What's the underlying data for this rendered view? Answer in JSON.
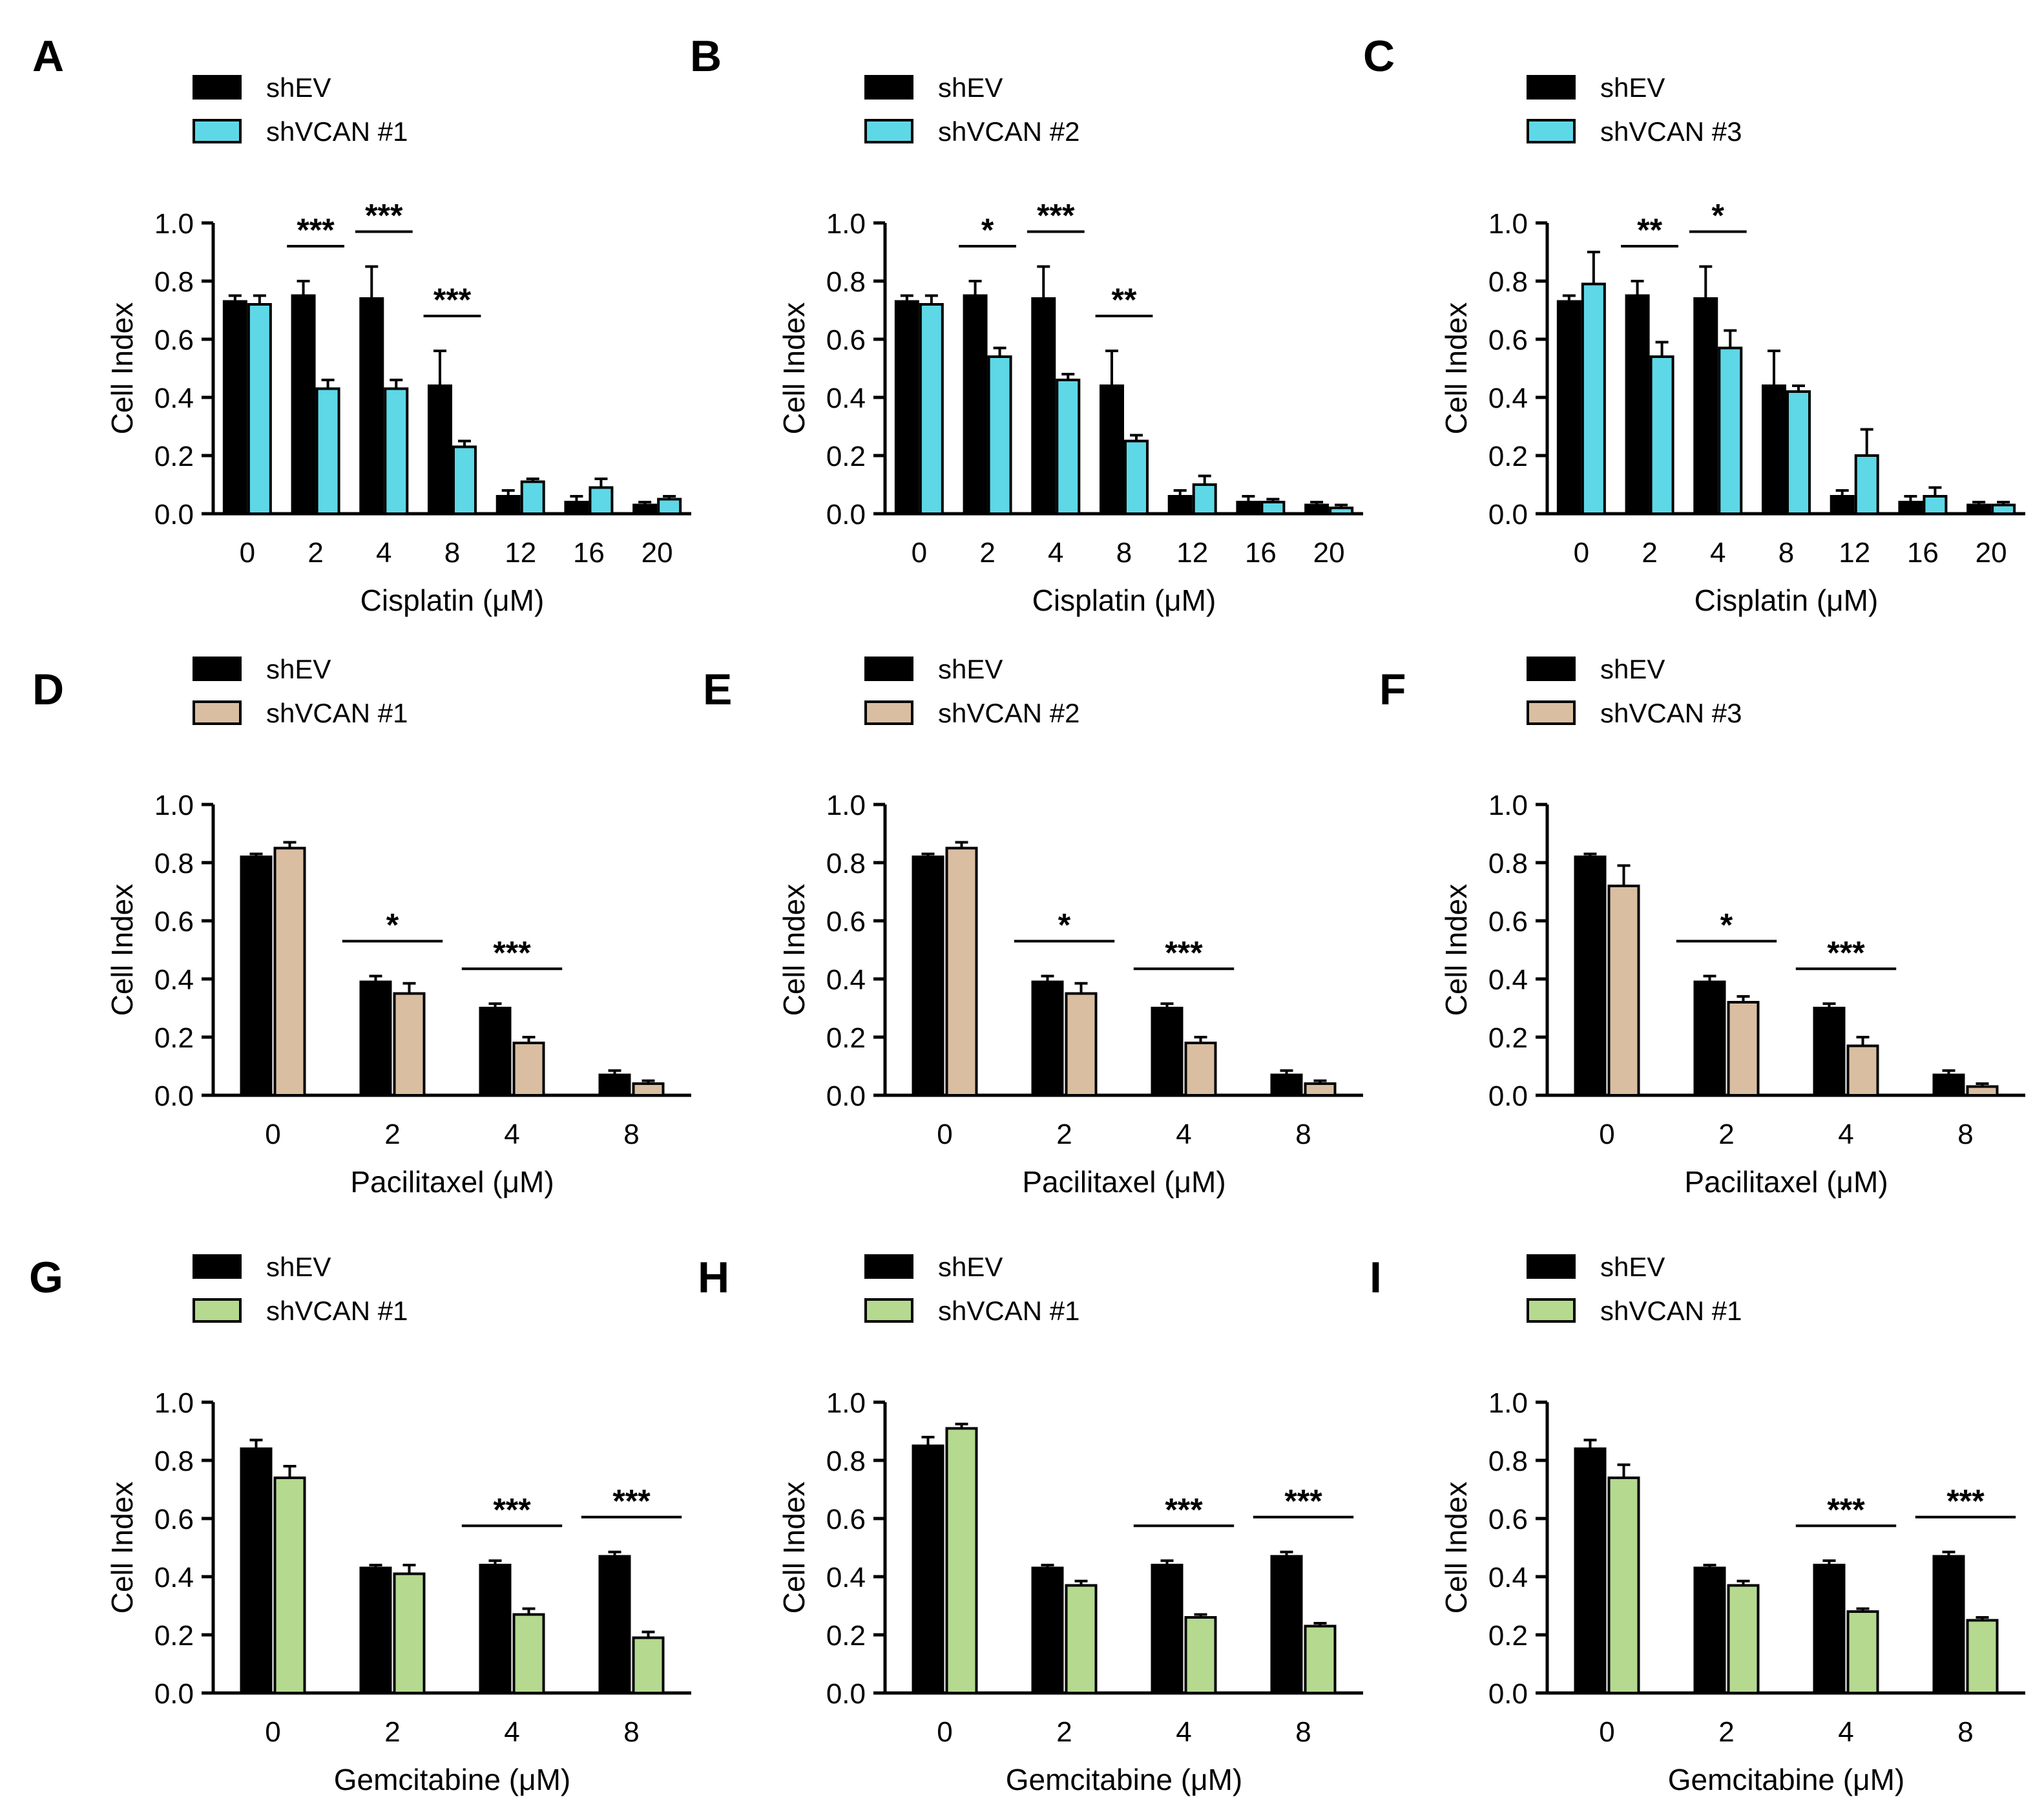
{
  "colors": {
    "shEV": "#000000",
    "cisplatin_knockdown": "#5ED8E6",
    "paclitaxel_knockdown": "#D9BEA1",
    "gemcitabine_knockdown": "#B4D98F"
  },
  "chart_data": [
    {
      "panel": "A",
      "type": "bar",
      "categories": [
        "0",
        "2",
        "4",
        "8",
        "12",
        "16",
        "20"
      ],
      "xlabel": "Cisplatin (μM)",
      "ylabel": "Cell Index",
      "ylim": [
        0,
        1.0
      ],
      "yticks": [
        "0.0",
        "0.2",
        "0.4",
        "0.6",
        "0.8",
        "1.0"
      ],
      "legend": "top-left",
      "series": [
        {
          "name": "shEV",
          "values": [
            0.73,
            0.75,
            0.74,
            0.44,
            0.06,
            0.04,
            0.03
          ],
          "errors": [
            0.02,
            0.05,
            0.11,
            0.12,
            0.02,
            0.02,
            0.01
          ]
        },
        {
          "name": "shVCAN #1",
          "values": [
            0.72,
            0.43,
            0.43,
            0.23,
            0.11,
            0.09,
            0.05
          ],
          "errors": [
            0.03,
            0.03,
            0.03,
            0.02,
            0.01,
            0.03,
            0.01
          ]
        }
      ],
      "significance": [
        {
          "category": "2",
          "label": "***"
        },
        {
          "category": "4",
          "label": "***"
        },
        {
          "category": "8",
          "label": "***"
        }
      ]
    },
    {
      "panel": "B",
      "type": "bar",
      "categories": [
        "0",
        "2",
        "4",
        "8",
        "12",
        "16",
        "20"
      ],
      "xlabel": "Cisplatin (μM)",
      "ylabel": "Cell Index",
      "ylim": [
        0,
        1.0
      ],
      "yticks": [
        "0.0",
        "0.2",
        "0.4",
        "0.6",
        "0.8",
        "1.0"
      ],
      "legend": "top-left",
      "series": [
        {
          "name": "shEV",
          "values": [
            0.73,
            0.75,
            0.74,
            0.44,
            0.06,
            0.04,
            0.03
          ],
          "errors": [
            0.02,
            0.05,
            0.11,
            0.12,
            0.02,
            0.02,
            0.01
          ]
        },
        {
          "name": "shVCAN #2",
          "values": [
            0.72,
            0.54,
            0.46,
            0.25,
            0.1,
            0.04,
            0.02
          ],
          "errors": [
            0.03,
            0.03,
            0.02,
            0.02,
            0.03,
            0.01,
            0.01
          ]
        }
      ],
      "significance": [
        {
          "category": "2",
          "label": "*"
        },
        {
          "category": "4",
          "label": "***"
        },
        {
          "category": "8",
          "label": "**"
        }
      ]
    },
    {
      "panel": "C",
      "type": "bar",
      "categories": [
        "0",
        "2",
        "4",
        "8",
        "12",
        "16",
        "20"
      ],
      "xlabel": "Cisplatin (μM)",
      "ylabel": "Cell Index",
      "ylim": [
        0,
        1.0
      ],
      "yticks": [
        "0.0",
        "0.2",
        "0.4",
        "0.6",
        "0.8",
        "1.0"
      ],
      "legend": "top-left",
      "series": [
        {
          "name": "shEV",
          "values": [
            0.73,
            0.75,
            0.74,
            0.44,
            0.06,
            0.04,
            0.03
          ],
          "errors": [
            0.02,
            0.05,
            0.11,
            0.12,
            0.02,
            0.02,
            0.01
          ]
        },
        {
          "name": "shVCAN #3",
          "values": [
            0.79,
            0.54,
            0.57,
            0.42,
            0.2,
            0.06,
            0.03
          ],
          "errors": [
            0.11,
            0.05,
            0.06,
            0.02,
            0.09,
            0.03,
            0.01
          ]
        }
      ],
      "significance": [
        {
          "category": "2",
          "label": "**"
        },
        {
          "category": "4",
          "label": "*"
        }
      ]
    },
    {
      "panel": "D",
      "type": "bar",
      "categories": [
        "0",
        "2",
        "4",
        "8"
      ],
      "xlabel": "Pacilitaxel (μM)",
      "ylabel": "Cell Index",
      "ylim": [
        0,
        1.0
      ],
      "yticks": [
        "0.0",
        "0.2",
        "0.4",
        "0.6",
        "0.8",
        "1.0"
      ],
      "legend": "top-left",
      "series": [
        {
          "name": "shEV",
          "values": [
            0.82,
            0.39,
            0.3,
            0.07
          ],
          "errors": [
            0.01,
            0.02,
            0.015,
            0.015
          ]
        },
        {
          "name": "shVCAN #1",
          "values": [
            0.85,
            0.35,
            0.18,
            0.04
          ],
          "errors": [
            0.02,
            0.035,
            0.02,
            0.01
          ]
        }
      ],
      "significance": [
        {
          "category": "2",
          "label": "*"
        },
        {
          "category": "4",
          "label": "***"
        }
      ]
    },
    {
      "panel": "E",
      "type": "bar",
      "categories": [
        "0",
        "2",
        "4",
        "8"
      ],
      "xlabel": "Pacilitaxel (μM)",
      "ylabel": "Cell Index",
      "ylim": [
        0,
        1.0
      ],
      "yticks": [
        "0.0",
        "0.2",
        "0.4",
        "0.6",
        "0.8",
        "1.0"
      ],
      "legend": "top-left",
      "series": [
        {
          "name": "shEV",
          "values": [
            0.82,
            0.39,
            0.3,
            0.07
          ],
          "errors": [
            0.01,
            0.02,
            0.015,
            0.015
          ]
        },
        {
          "name": "shVCAN #2",
          "values": [
            0.85,
            0.35,
            0.18,
            0.04
          ],
          "errors": [
            0.02,
            0.035,
            0.02,
            0.01
          ]
        }
      ],
      "significance": [
        {
          "category": "2",
          "label": "*"
        },
        {
          "category": "4",
          "label": "***"
        }
      ]
    },
    {
      "panel": "F",
      "type": "bar",
      "categories": [
        "0",
        "2",
        "4",
        "8"
      ],
      "xlabel": "Pacilitaxel (μM)",
      "ylabel": "Cell Index",
      "ylim": [
        0,
        1.0
      ],
      "yticks": [
        "0.0",
        "0.2",
        "0.4",
        "0.6",
        "0.8",
        "1.0"
      ],
      "legend": "top-left",
      "series": [
        {
          "name": "shEV",
          "values": [
            0.82,
            0.39,
            0.3,
            0.07
          ],
          "errors": [
            0.01,
            0.02,
            0.015,
            0.015
          ]
        },
        {
          "name": "shVCAN #3",
          "values": [
            0.72,
            0.32,
            0.17,
            0.03
          ],
          "errors": [
            0.07,
            0.02,
            0.03,
            0.01
          ]
        }
      ],
      "significance": [
        {
          "category": "2",
          "label": "*"
        },
        {
          "category": "4",
          "label": "***"
        }
      ]
    },
    {
      "panel": "G",
      "type": "bar",
      "categories": [
        "0",
        "2",
        "4",
        "8"
      ],
      "xlabel": "Gemcitabine (μM)",
      "ylabel": "Cell Index",
      "ylim": [
        0,
        1.0
      ],
      "yticks": [
        "0.0",
        "0.2",
        "0.4",
        "0.6",
        "0.8",
        "1.0"
      ],
      "legend": "top-left",
      "series": [
        {
          "name": "shEV",
          "values": [
            0.84,
            0.43,
            0.44,
            0.47
          ],
          "errors": [
            0.03,
            0.01,
            0.015,
            0.015
          ]
        },
        {
          "name": "shVCAN #1",
          "values": [
            0.74,
            0.41,
            0.27,
            0.19
          ],
          "errors": [
            0.04,
            0.03,
            0.02,
            0.02
          ]
        }
      ],
      "significance": [
        {
          "category": "4",
          "label": "***"
        },
        {
          "category": "8",
          "label": "***"
        }
      ]
    },
    {
      "panel": "H",
      "type": "bar",
      "categories": [
        "0",
        "2",
        "4",
        "8"
      ],
      "xlabel": "Gemcitabine (μM)",
      "ylabel": "Cell Index",
      "ylim": [
        0,
        1.0
      ],
      "yticks": [
        "0.0",
        "0.2",
        "0.4",
        "0.6",
        "0.8",
        "1.0"
      ],
      "legend": "top-left",
      "series": [
        {
          "name": "shEV",
          "values": [
            0.85,
            0.43,
            0.44,
            0.47
          ],
          "errors": [
            0.03,
            0.01,
            0.015,
            0.015
          ]
        },
        {
          "name": "shVCAN #1",
          "values": [
            0.91,
            0.37,
            0.26,
            0.23
          ],
          "errors": [
            0.015,
            0.015,
            0.01,
            0.01
          ]
        }
      ],
      "significance": [
        {
          "category": "4",
          "label": "***"
        },
        {
          "category": "8",
          "label": "***"
        }
      ]
    },
    {
      "panel": "I",
      "type": "bar",
      "categories": [
        "0",
        "2",
        "4",
        "8"
      ],
      "xlabel": "Gemcitabine (μM)",
      "ylabel": "Cell Index",
      "ylim": [
        0,
        1.0
      ],
      "yticks": [
        "0.0",
        "0.2",
        "0.4",
        "0.6",
        "0.8",
        "1.0"
      ],
      "legend": "top-left",
      "series": [
        {
          "name": "shEV",
          "values": [
            0.84,
            0.43,
            0.44,
            0.47
          ],
          "errors": [
            0.03,
            0.01,
            0.015,
            0.015
          ]
        },
        {
          "name": "shVCAN #1",
          "values": [
            0.74,
            0.37,
            0.28,
            0.25
          ],
          "errors": [
            0.045,
            0.015,
            0.01,
            0.01
          ]
        }
      ],
      "significance": [
        {
          "category": "4",
          "label": "***"
        },
        {
          "category": "8",
          "label": "***"
        }
      ]
    }
  ]
}
